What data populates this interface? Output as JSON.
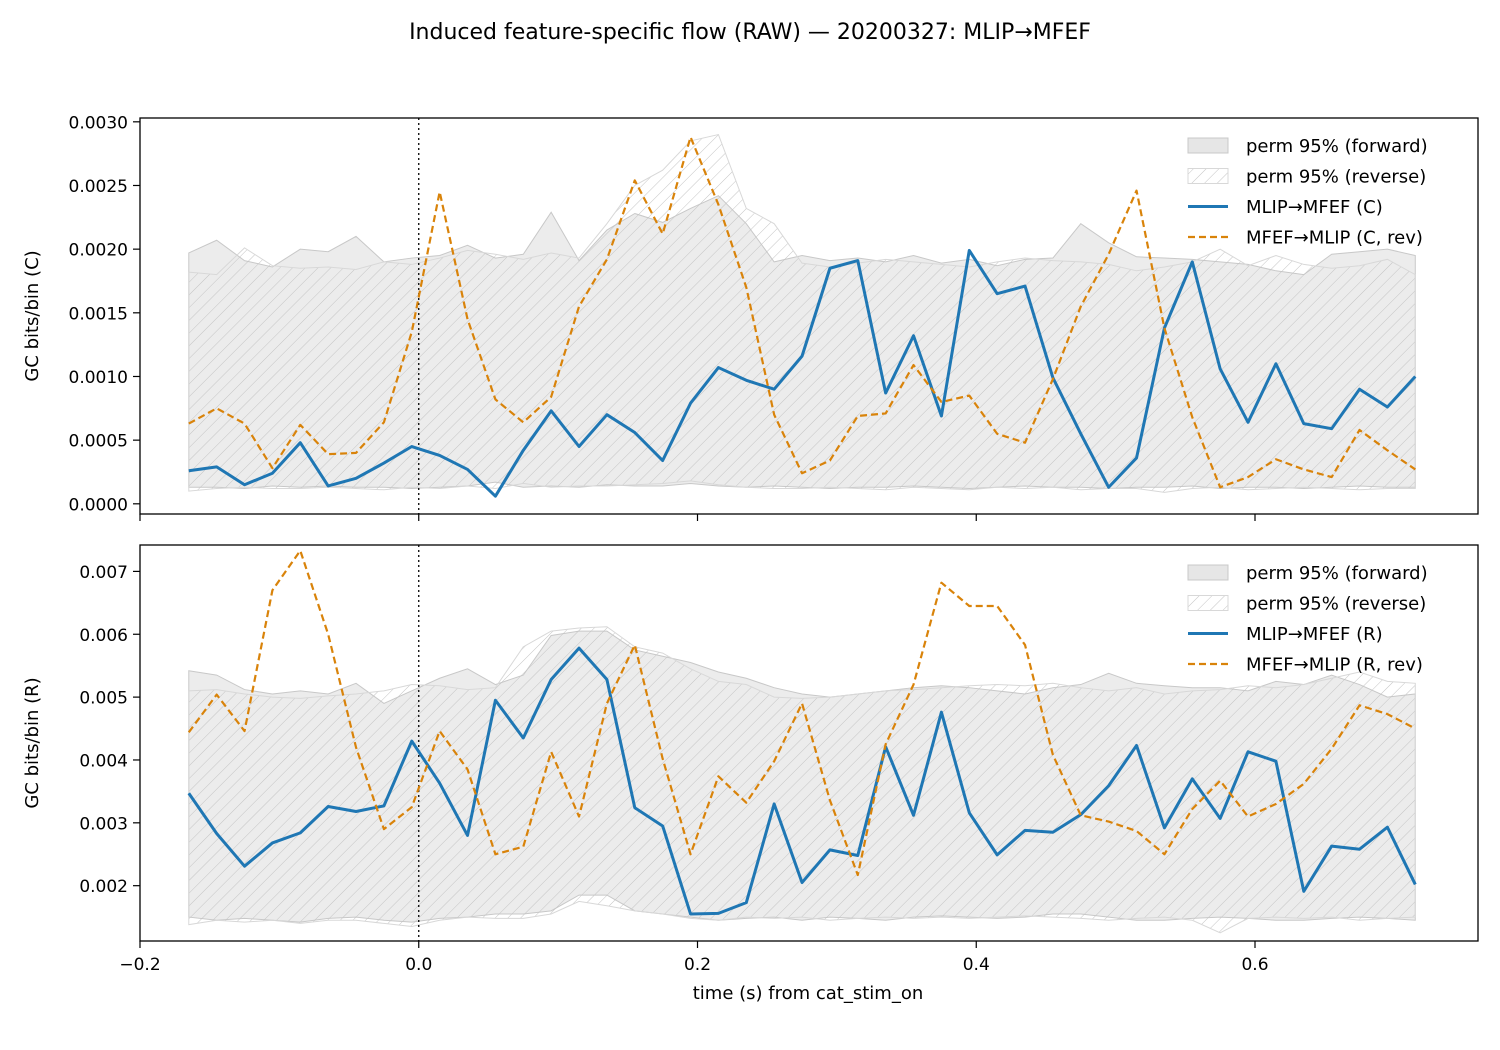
{
  "figure": {
    "title": "Induced feature-specific flow (RAW) — 20200327: MLIP→MFEF",
    "xlabel": "time (s) from cat_stim_on"
  },
  "colors": {
    "forward": "#1f77b4",
    "reverse": "#d9830a",
    "band_fill": "#e6e6e6",
    "band_edge": "#c8c8c8",
    "hatch": "#bdbdbd"
  },
  "chart_data": [
    {
      "type": "line",
      "panel": "top",
      "ylabel": "GC bits/bin (C)",
      "xlim": [
        -0.2,
        0.76
      ],
      "ylim": [
        -8e-05,
        0.00303
      ],
      "xticks": [
        -0.2,
        0.0,
        0.2,
        0.4,
        0.6
      ],
      "xtick_labels": [
        "−0.2",
        "0.0",
        "0.2",
        "0.4",
        "0.6"
      ],
      "show_xtick_labels": false,
      "yticks": [
        0.0,
        0.0005,
        0.001,
        0.0015,
        0.002,
        0.0025,
        0.003
      ],
      "ytick_labels": [
        "0.0000",
        "0.0005",
        "0.0010",
        "0.0015",
        "0.0020",
        "0.0025",
        "0.0030"
      ],
      "vline_x": 0.0,
      "legend_position": "upper right",
      "legend": [
        "perm 95% (forward)",
        "perm 95% (reverse)",
        "MLIP→MFEF (C)",
        "MFEF→MLIP (C, rev)"
      ],
      "x": [
        -0.165,
        -0.145,
        -0.125,
        -0.105,
        -0.085,
        -0.065,
        -0.045,
        -0.025,
        -0.005,
        0.015,
        0.035,
        0.055,
        0.075,
        0.095,
        0.115,
        0.135,
        0.155,
        0.175,
        0.195,
        0.215,
        0.235,
        0.255,
        0.275,
        0.295,
        0.315,
        0.335,
        0.355,
        0.375,
        0.395,
        0.415,
        0.435,
        0.455,
        0.475,
        0.495,
        0.515,
        0.535,
        0.555,
        0.575,
        0.595,
        0.615,
        0.635,
        0.655,
        0.675,
        0.695,
        0.715
      ],
      "band_forward": {
        "upper": [
          0.00197,
          0.00207,
          0.00191,
          0.00186,
          0.002,
          0.00198,
          0.0021,
          0.0019,
          0.00193,
          0.00195,
          0.00203,
          0.00193,
          0.00196,
          0.00229,
          0.00191,
          0.00215,
          0.00228,
          0.00221,
          0.00232,
          0.00242,
          0.0022,
          0.0019,
          0.00195,
          0.00191,
          0.00193,
          0.0019,
          0.00195,
          0.00189,
          0.00192,
          0.00187,
          0.00192,
          0.00193,
          0.0022,
          0.00205,
          0.00194,
          0.00193,
          0.00192,
          0.0019,
          0.00188,
          0.00183,
          0.0018,
          0.00196,
          0.00198,
          0.002,
          0.00195
        ],
        "lower": [
          0.00013,
          0.00013,
          0.00012,
          0.00014,
          0.00013,
          0.00014,
          0.00013,
          0.00013,
          0.00012,
          0.00013,
          0.00014,
          0.00017,
          0.00013,
          0.00014,
          0.00013,
          0.00015,
          0.00014,
          0.00014,
          0.00016,
          0.00014,
          0.00013,
          0.00014,
          0.00013,
          0.00012,
          0.00013,
          0.00013,
          0.00014,
          0.00013,
          0.00012,
          0.00013,
          0.00014,
          0.00013,
          0.00013,
          0.00012,
          0.00013,
          0.00013,
          0.00014,
          0.00012,
          0.00013,
          0.00013,
          0.00012,
          0.00013,
          0.00014,
          0.00013,
          0.00013
        ]
      },
      "band_reverse": {
        "upper": [
          0.00182,
          0.0018,
          0.00201,
          0.00187,
          0.00185,
          0.00186,
          0.00184,
          0.0019,
          0.00188,
          0.00193,
          0.00199,
          0.00196,
          0.00192,
          0.00197,
          0.00193,
          0.0022,
          0.0025,
          0.00262,
          0.00285,
          0.0029,
          0.00232,
          0.0022,
          0.00189,
          0.00186,
          0.00189,
          0.00192,
          0.0019,
          0.00188,
          0.00186,
          0.0019,
          0.00193,
          0.00191,
          0.0019,
          0.00188,
          0.00183,
          0.00186,
          0.0019,
          0.002,
          0.00187,
          0.00195,
          0.00188,
          0.00185,
          0.00187,
          0.00192,
          0.0018
        ],
        "lower": [
          0.0001,
          0.00012,
          0.00013,
          0.00012,
          0.00012,
          0.00013,
          0.00012,
          0.00011,
          0.00013,
          0.00012,
          0.00014,
          0.00012,
          0.00016,
          0.00013,
          0.00014,
          0.00014,
          0.00015,
          0.00016,
          0.00018,
          0.00015,
          0.00013,
          0.00012,
          0.00012,
          0.00013,
          0.00012,
          0.00011,
          0.00013,
          0.00012,
          0.00011,
          0.00013,
          0.00012,
          0.00013,
          0.00011,
          0.00012,
          0.00012,
          9e-05,
          0.00012,
          0.00013,
          0.00011,
          0.00012,
          0.00013,
          0.00012,
          0.00011,
          0.00012,
          0.00012
        ]
      },
      "series": [
        {
          "name": "MLIP→MFEF (C)",
          "style": "solid",
          "values": [
            0.00026,
            0.00029,
            0.00015,
            0.00024,
            0.00048,
            0.00014,
            0.0002,
            0.00032,
            0.00045,
            0.00038,
            0.00027,
            6e-05,
            0.00042,
            0.00073,
            0.00045,
            0.0007,
            0.00056,
            0.00034,
            0.00079,
            0.00107,
            0.00097,
            0.0009,
            0.00116,
            0.00185,
            0.00191,
            0.00087,
            0.00132,
            0.00069,
            0.00199,
            0.00165,
            0.00171,
            0.00099,
            0.00055,
            0.00013,
            0.00036,
            0.00138,
            0.0019,
            0.00106,
            0.00064,
            0.0011,
            0.00063,
            0.00059,
            0.0009,
            0.00076,
            0.001
          ]
        },
        {
          "name": "MFEF→MLIP (C, rev)",
          "style": "dashed",
          "values": [
            0.00063,
            0.00075,
            0.00063,
            0.00028,
            0.00062,
            0.00039,
            0.0004,
            0.00064,
            0.00135,
            0.00245,
            0.00145,
            0.00082,
            0.00064,
            0.00084,
            0.00155,
            0.00192,
            0.00254,
            0.00212,
            0.00288,
            0.00235,
            0.0017,
            0.0007,
            0.00024,
            0.00034,
            0.00069,
            0.00071,
            0.00109,
            0.0008,
            0.00085,
            0.00055,
            0.00048,
            0.00098,
            0.00155,
            0.00196,
            0.00246,
            0.00138,
            0.00068,
            0.00013,
            0.00021,
            0.00035,
            0.00027,
            0.00021,
            0.00058,
            0.00042,
            0.00027
          ]
        }
      ]
    },
    {
      "type": "line",
      "panel": "bottom",
      "ylabel": "GC bits/bin (R)",
      "xlim": [
        -0.2,
        0.76
      ],
      "ylim": [
        0.00112,
        0.00742
      ],
      "xticks": [
        -0.2,
        0.0,
        0.2,
        0.4,
        0.6
      ],
      "xtick_labels": [
        "−0.2",
        "0.0",
        "0.2",
        "0.4",
        "0.6"
      ],
      "show_xtick_labels": true,
      "yticks": [
        0.002,
        0.003,
        0.004,
        0.005,
        0.006,
        0.007
      ],
      "ytick_labels": [
        "0.002",
        "0.003",
        "0.004",
        "0.005",
        "0.006",
        "0.007"
      ],
      "vline_x": 0.0,
      "legend_position": "upper right",
      "legend": [
        "perm 95% (forward)",
        "perm 95% (reverse)",
        "MLIP→MFEF (R)",
        "MFEF→MLIP (R, rev)"
      ],
      "x": [
        -0.165,
        -0.145,
        -0.125,
        -0.105,
        -0.085,
        -0.065,
        -0.045,
        -0.025,
        -0.005,
        0.015,
        0.035,
        0.055,
        0.075,
        0.095,
        0.115,
        0.135,
        0.155,
        0.175,
        0.195,
        0.215,
        0.235,
        0.255,
        0.275,
        0.295,
        0.315,
        0.335,
        0.355,
        0.375,
        0.395,
        0.415,
        0.435,
        0.455,
        0.475,
        0.495,
        0.515,
        0.535,
        0.555,
        0.575,
        0.595,
        0.615,
        0.635,
        0.655,
        0.675,
        0.695,
        0.715
      ],
      "band_forward": {
        "upper": [
          0.00542,
          0.00535,
          0.00512,
          0.00505,
          0.0051,
          0.00505,
          0.00522,
          0.0049,
          0.0051,
          0.0053,
          0.00545,
          0.0052,
          0.00535,
          0.00598,
          0.00605,
          0.00605,
          0.00575,
          0.00565,
          0.00555,
          0.0054,
          0.0053,
          0.00515,
          0.00505,
          0.005,
          0.00505,
          0.0051,
          0.00515,
          0.00518,
          0.00515,
          0.0051,
          0.00505,
          0.00515,
          0.0052,
          0.00538,
          0.00522,
          0.00518,
          0.00515,
          0.00515,
          0.0051,
          0.00525,
          0.0052,
          0.00535,
          0.0052,
          0.005,
          0.00505
        ],
        "lower": [
          0.0015,
          0.00145,
          0.00148,
          0.00145,
          0.00142,
          0.00148,
          0.0015,
          0.00145,
          0.00142,
          0.00148,
          0.0015,
          0.00155,
          0.00155,
          0.0016,
          0.00185,
          0.00185,
          0.0016,
          0.00155,
          0.0015,
          0.00145,
          0.00148,
          0.0015,
          0.00145,
          0.0015,
          0.00148,
          0.00145,
          0.0015,
          0.00152,
          0.0015,
          0.00148,
          0.0015,
          0.00155,
          0.00155,
          0.0015,
          0.00145,
          0.00145,
          0.00148,
          0.0015,
          0.00148,
          0.00145,
          0.00145,
          0.00148,
          0.0015,
          0.00148,
          0.00145
        ]
      },
      "band_reverse": {
        "upper": [
          0.0051,
          0.00512,
          0.00505,
          0.005,
          0.00498,
          0.00502,
          0.00505,
          0.0051,
          0.0052,
          0.00518,
          0.00512,
          0.00515,
          0.0058,
          0.00605,
          0.0061,
          0.00612,
          0.0058,
          0.0057,
          0.00545,
          0.00525,
          0.0052,
          0.005,
          0.00498,
          0.005,
          0.00505,
          0.0051,
          0.00512,
          0.00515,
          0.00518,
          0.0052,
          0.00518,
          0.00522,
          0.00515,
          0.0051,
          0.00515,
          0.00505,
          0.0051,
          0.00512,
          0.00518,
          0.00515,
          0.0052,
          0.0053,
          0.0054,
          0.00525,
          0.00522
        ],
        "lower": [
          0.00138,
          0.00145,
          0.00142,
          0.00145,
          0.0014,
          0.00145,
          0.00145,
          0.0014,
          0.00135,
          0.00145,
          0.0015,
          0.00148,
          0.00148,
          0.00155,
          0.00175,
          0.00168,
          0.0016,
          0.00155,
          0.00148,
          0.00145,
          0.0015,
          0.00148,
          0.0015,
          0.00145,
          0.00148,
          0.0015,
          0.00148,
          0.0015,
          0.00148,
          0.0015,
          0.00152,
          0.0015,
          0.00148,
          0.00145,
          0.00148,
          0.0015,
          0.00145,
          0.00125,
          0.00148,
          0.0015,
          0.00148,
          0.0015,
          0.00145,
          0.00148,
          0.0015
        ]
      },
      "series": [
        {
          "name": "MLIP→MFEF (R)",
          "style": "solid",
          "values": [
            0.00347,
            0.00283,
            0.00231,
            0.00268,
            0.00284,
            0.00326,
            0.00318,
            0.00327,
            0.0043,
            0.00363,
            0.0028,
            0.00495,
            0.00435,
            0.00528,
            0.00578,
            0.00528,
            0.00324,
            0.00295,
            0.00155,
            0.00156,
            0.00173,
            0.0033,
            0.00205,
            0.00257,
            0.00248,
            0.00421,
            0.00312,
            0.00476,
            0.00316,
            0.00249,
            0.00288,
            0.00285,
            0.00313,
            0.00359,
            0.00423,
            0.00292,
            0.0037,
            0.00307,
            0.00413,
            0.00398,
            0.00191,
            0.00263,
            0.00258,
            0.00293,
            0.00202
          ]
        },
        {
          "name": "MFEF→MLIP (R, rev)",
          "style": "dashed",
          "values": [
            0.00444,
            0.00504,
            0.00446,
            0.0067,
            0.00733,
            0.006,
            0.0042,
            0.0029,
            0.00325,
            0.00446,
            0.00385,
            0.0025,
            0.00262,
            0.00413,
            0.0031,
            0.0049,
            0.00583,
            0.00402,
            0.0025,
            0.00374,
            0.00332,
            0.00398,
            0.0049,
            0.00336,
            0.00217,
            0.00425,
            0.0052,
            0.00682,
            0.00645,
            0.00645,
            0.00583,
            0.00408,
            0.00312,
            0.00302,
            0.00287,
            0.0025,
            0.00322,
            0.00367,
            0.0031,
            0.0033,
            0.00362,
            0.00418,
            0.00487,
            0.00473,
            0.0045
          ]
        }
      ]
    }
  ]
}
